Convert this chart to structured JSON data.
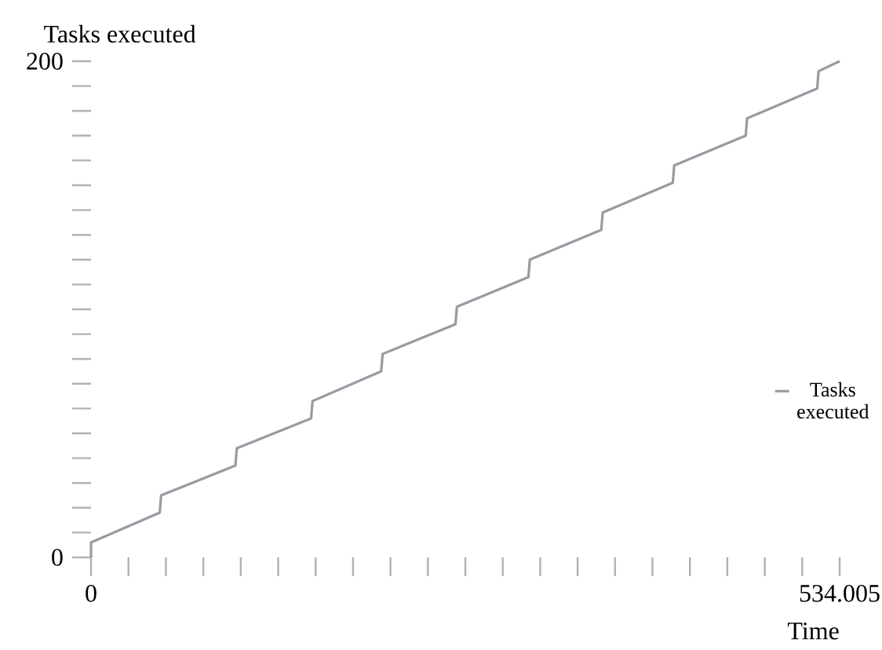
{
  "chart_data": {
    "type": "line",
    "ylabel": "Tasks executed",
    "xlabel": "Time",
    "xlim": [
      0,
      534.005
    ],
    "ylim": [
      0,
      200
    ],
    "xticks": [
      0,
      {
        "value": 26.70025,
        "label": null
      },
      {
        "value": 53.4005,
        "label": null
      },
      {
        "value": 80.10075,
        "label": null
      },
      {
        "value": 106.801,
        "label": null
      },
      {
        "value": 133.50125,
        "label": null
      },
      {
        "value": 160.2015,
        "label": null
      },
      {
        "value": 186.90175,
        "label": null
      },
      {
        "value": 213.602,
        "label": null
      },
      {
        "value": 240.30225,
        "label": null
      },
      {
        "value": 267.0025,
        "label": null
      },
      {
        "value": 293.70275,
        "label": null
      },
      {
        "value": 320.403,
        "label": null
      },
      {
        "value": 347.10325,
        "label": null
      },
      {
        "value": 373.8035,
        "label": null
      },
      {
        "value": 400.50375,
        "label": null
      },
      {
        "value": 427.204,
        "label": null
      },
      {
        "value": 453.90425,
        "label": null
      },
      {
        "value": 480.6045,
        "label": null
      },
      {
        "value": 507.30475,
        "label": null
      },
      534.005
    ],
    "yticks": [
      0,
      {
        "value": 10,
        "label": null
      },
      {
        "value": 20,
        "label": null
      },
      {
        "value": 30,
        "label": null
      },
      {
        "value": 40,
        "label": null
      },
      {
        "value": 50,
        "label": null
      },
      {
        "value": 60,
        "label": null
      },
      {
        "value": 70,
        "label": null
      },
      {
        "value": 80,
        "label": null
      },
      {
        "value": 90,
        "label": null
      },
      {
        "value": 100,
        "label": null
      },
      {
        "value": 110,
        "label": null
      },
      {
        "value": 120,
        "label": null
      },
      {
        "value": 130,
        "label": null
      },
      {
        "value": 140,
        "label": null
      },
      {
        "value": 150,
        "label": null
      },
      {
        "value": 160,
        "label": null
      },
      {
        "value": 170,
        "label": null
      },
      {
        "value": 180,
        "label": null
      },
      {
        "value": 190,
        "label": null
      },
      200
    ],
    "legend": "right",
    "series": [
      {
        "name": "Tasks executed",
        "color": "#9a9aa2",
        "x": [
          0,
          0,
          49,
          50,
          103,
          104,
          157,
          158,
          207,
          208,
          260,
          261,
          312,
          313,
          364,
          365,
          415,
          416,
          467,
          468,
          518,
          519,
          534
        ],
        "values": [
          0,
          6,
          18,
          25,
          37,
          44,
          56,
          63,
          75,
          82,
          94,
          101,
          113,
          120,
          132,
          139,
          151,
          158,
          170,
          177,
          189,
          196,
          200
        ]
      }
    ]
  }
}
